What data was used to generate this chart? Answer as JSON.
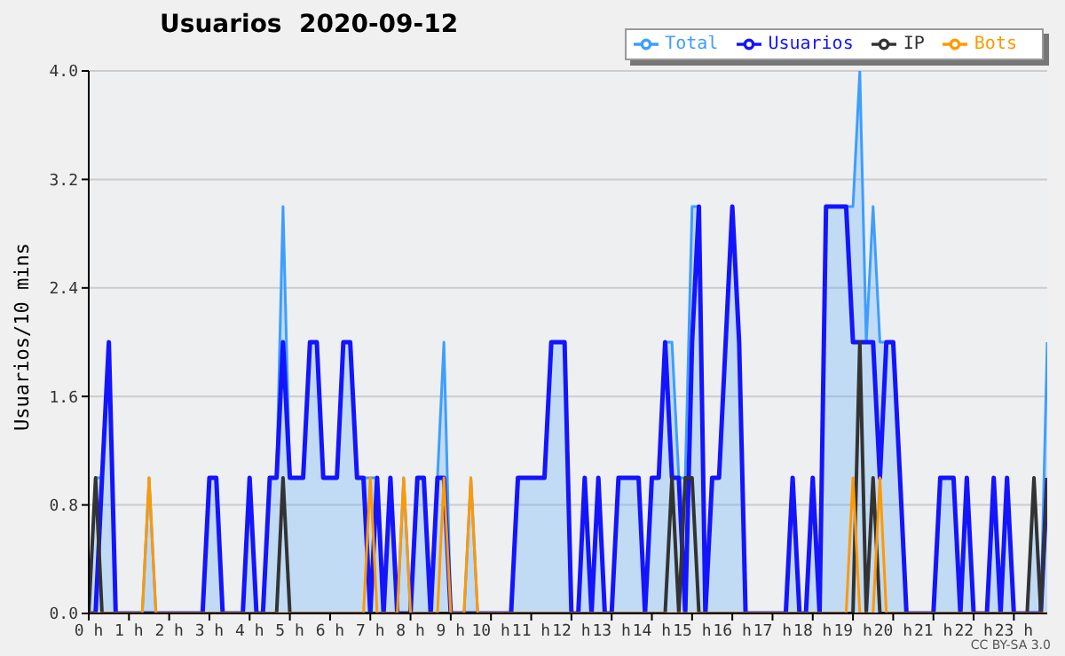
{
  "chart_data": {
    "type": "line",
    "title": "Usuarios  2020-09-12",
    "ylabel": "Usuarios/10 mins",
    "annotations": [
      "CC BY-SA 3.0"
    ],
    "xlim": [
      0,
      23.83
    ],
    "xticks": [
      {
        "value": 0,
        "label": "0 h"
      },
      {
        "value": 1,
        "label": "1 h"
      },
      {
        "value": 2,
        "label": "2 h"
      },
      {
        "value": 3,
        "label": "3 h"
      },
      {
        "value": 4,
        "label": "4 h"
      },
      {
        "value": 5,
        "label": "5 h"
      },
      {
        "value": 6,
        "label": "6 h"
      },
      {
        "value": 7,
        "label": "7 h"
      },
      {
        "value": 8,
        "label": "8 h"
      },
      {
        "value": 9,
        "label": "9 h"
      },
      {
        "value": 10,
        "label": "10 h"
      },
      {
        "value": 11,
        "label": "11 h"
      },
      {
        "value": 12,
        "label": "12 h"
      },
      {
        "value": 13,
        "label": "13 h"
      },
      {
        "value": 14,
        "label": "14 h"
      },
      {
        "value": 15,
        "label": "15 h"
      },
      {
        "value": 16,
        "label": "16 h"
      },
      {
        "value": 17,
        "label": "17 h"
      },
      {
        "value": 18,
        "label": "18 h"
      },
      {
        "value": 19,
        "label": "19 h"
      },
      {
        "value": 20,
        "label": "20 h"
      },
      {
        "value": 21,
        "label": "21 h"
      },
      {
        "value": 22,
        "label": "22 h"
      },
      {
        "value": 23,
        "label": "23 h"
      }
    ],
    "ylim": [
      0,
      4
    ],
    "yticks": [
      {
        "value": 0,
        "label": "0.0"
      },
      {
        "value": 0.8,
        "label": "0.8"
      },
      {
        "value": 1.6,
        "label": "1.6"
      },
      {
        "value": 2.4,
        "label": "2.4"
      },
      {
        "value": 3.2,
        "label": "3.2"
      },
      {
        "value": 4,
        "label": "4.0"
      }
    ],
    "grid": "y",
    "legend": "top right",
    "marker": "none",
    "line_style": "solid",
    "series": [
      {
        "name": "Total",
        "type": "area",
        "color": "#3d9eff",
        "x": [
          0,
          0.17,
          0.33,
          0.5,
          0.67,
          1.33,
          1.5,
          1.67,
          2.83,
          3,
          3.17,
          3.33,
          3.83,
          4,
          4.17,
          4.33,
          4.5,
          4.67,
          4.83,
          5,
          5.33,
          5.5,
          5.67,
          5.83,
          6.17,
          6.33,
          6.5,
          6.67,
          6.83,
          7,
          7.17,
          7.33,
          7.5,
          7.67,
          7.83,
          8,
          8.17,
          8.33,
          8.5,
          8.67,
          8.83,
          9,
          9.33,
          9.5,
          9.67,
          10.5,
          10.67,
          11.33,
          11.5,
          11.83,
          12,
          12.17,
          12.33,
          12.5,
          12.67,
          12.83,
          13,
          13.17,
          13.67,
          13.83,
          14,
          14.17,
          14.33,
          14.5,
          14.67,
          14.83,
          15,
          15.17,
          15.33,
          15.5,
          15.67,
          16,
          16.17,
          16.33,
          17.33,
          17.5,
          17.67,
          17.83,
          18,
          18.17,
          18.33,
          18.83,
          19,
          19.17,
          19.33,
          19.5,
          19.67,
          19.83,
          20,
          20.17,
          20.33,
          21,
          21.17,
          21.5,
          21.67,
          21.83,
          22,
          22.33,
          22.5,
          22.67,
          22.83,
          23,
          23.33,
          23.5,
          23.67,
          23.83
        ],
        "values": [
          0,
          1,
          1,
          2,
          0,
          0,
          1,
          0,
          0,
          1,
          1,
          0,
          0,
          1,
          0,
          0,
          1,
          1,
          3,
          1,
          1,
          2,
          2,
          1,
          1,
          2,
          2,
          1,
          1,
          1,
          1,
          0,
          1,
          0,
          1,
          0,
          1,
          1,
          0,
          1,
          2,
          0,
          0,
          1,
          0,
          0,
          1,
          1,
          2,
          2,
          0,
          0,
          1,
          0,
          1,
          0,
          0,
          1,
          1,
          0,
          1,
          1,
          2,
          2,
          1,
          1,
          3,
          3,
          0,
          1,
          1,
          3,
          2,
          0,
          0,
          1,
          0,
          0,
          1,
          0,
          3,
          3,
          3,
          4,
          2,
          3,
          2,
          2,
          2,
          1,
          0,
          0,
          1,
          1,
          0,
          1,
          0,
          0,
          1,
          0,
          1,
          0,
          0,
          1,
          0,
          2
        ]
      },
      {
        "name": "Usuarios",
        "color": "#1414ff",
        "x": [
          0,
          0.17,
          0.33,
          0.5,
          0.67,
          2.83,
          3,
          3.17,
          3.33,
          3.83,
          4,
          4.17,
          4.33,
          4.5,
          4.67,
          4.83,
          5,
          5.33,
          5.5,
          5.67,
          5.83,
          6.17,
          6.33,
          6.5,
          6.67,
          6.83,
          7,
          7.17,
          7.33,
          7.5,
          7.67,
          8,
          8.17,
          8.33,
          8.5,
          8.67,
          8.83,
          9,
          10.5,
          10.67,
          11.33,
          11.5,
          11.83,
          12,
          12.17,
          12.33,
          12.5,
          12.67,
          12.83,
          13,
          13.17,
          13.67,
          13.83,
          14,
          14.17,
          14.33,
          14.5,
          14.67,
          14.83,
          15,
          15.17,
          15.33,
          15.5,
          15.67,
          16,
          16.17,
          16.33,
          17.33,
          17.5,
          17.67,
          17.83,
          18,
          18.17,
          18.33,
          18.83,
          19,
          19.5,
          19.67,
          19.83,
          20,
          20.17,
          20.33,
          21,
          21.17,
          21.5,
          21.67,
          21.83,
          22,
          22.33,
          22.5,
          22.67,
          22.83,
          23,
          23.67,
          23.83
        ],
        "values": [
          0,
          0,
          1,
          2,
          0,
          0,
          1,
          1,
          0,
          0,
          1,
          0,
          0,
          1,
          1,
          2,
          1,
          1,
          2,
          2,
          1,
          1,
          2,
          2,
          1,
          1,
          0,
          1,
          0,
          1,
          0,
          0,
          1,
          1,
          0,
          1,
          1,
          0,
          0,
          1,
          1,
          2,
          2,
          0,
          0,
          1,
          0,
          1,
          0,
          0,
          1,
          1,
          0,
          1,
          1,
          2,
          1,
          1,
          0,
          2,
          3,
          0,
          1,
          1,
          3,
          2,
          0,
          0,
          1,
          0,
          0,
          1,
          0,
          3,
          3,
          2,
          2,
          1,
          2,
          2,
          1,
          0,
          0,
          1,
          1,
          0,
          1,
          0,
          0,
          1,
          0,
          1,
          0,
          0,
          1
        ]
      },
      {
        "name": "IP",
        "color": "#333333",
        "x": [
          0,
          0.17,
          0.33,
          4.67,
          4.83,
          5,
          14.33,
          14.5,
          14.67,
          14.83,
          15,
          15.17,
          19,
          19.17,
          19.33,
          19.5,
          19.67,
          23.33,
          23.5,
          23.67,
          23.83
        ],
        "values": [
          0,
          1,
          0,
          0,
          1,
          0,
          0,
          1,
          0,
          1,
          1,
          0,
          0,
          2,
          0,
          1,
          0,
          0,
          1,
          0,
          1
        ]
      },
      {
        "name": "Bots",
        "color": "#ff9900",
        "x": [
          0,
          1.33,
          1.5,
          1.67,
          6.83,
          7,
          7.17,
          7.67,
          7.83,
          8,
          8.67,
          8.83,
          9,
          9.33,
          9.5,
          9.67,
          18.83,
          19,
          19.17,
          19.5,
          19.67,
          19.83,
          23.83
        ],
        "values": [
          0,
          0,
          1,
          0,
          0,
          1,
          0,
          0,
          1,
          0,
          0,
          1,
          0,
          0,
          1,
          0,
          0,
          1,
          0,
          0,
          1,
          0,
          0
        ]
      }
    ]
  }
}
